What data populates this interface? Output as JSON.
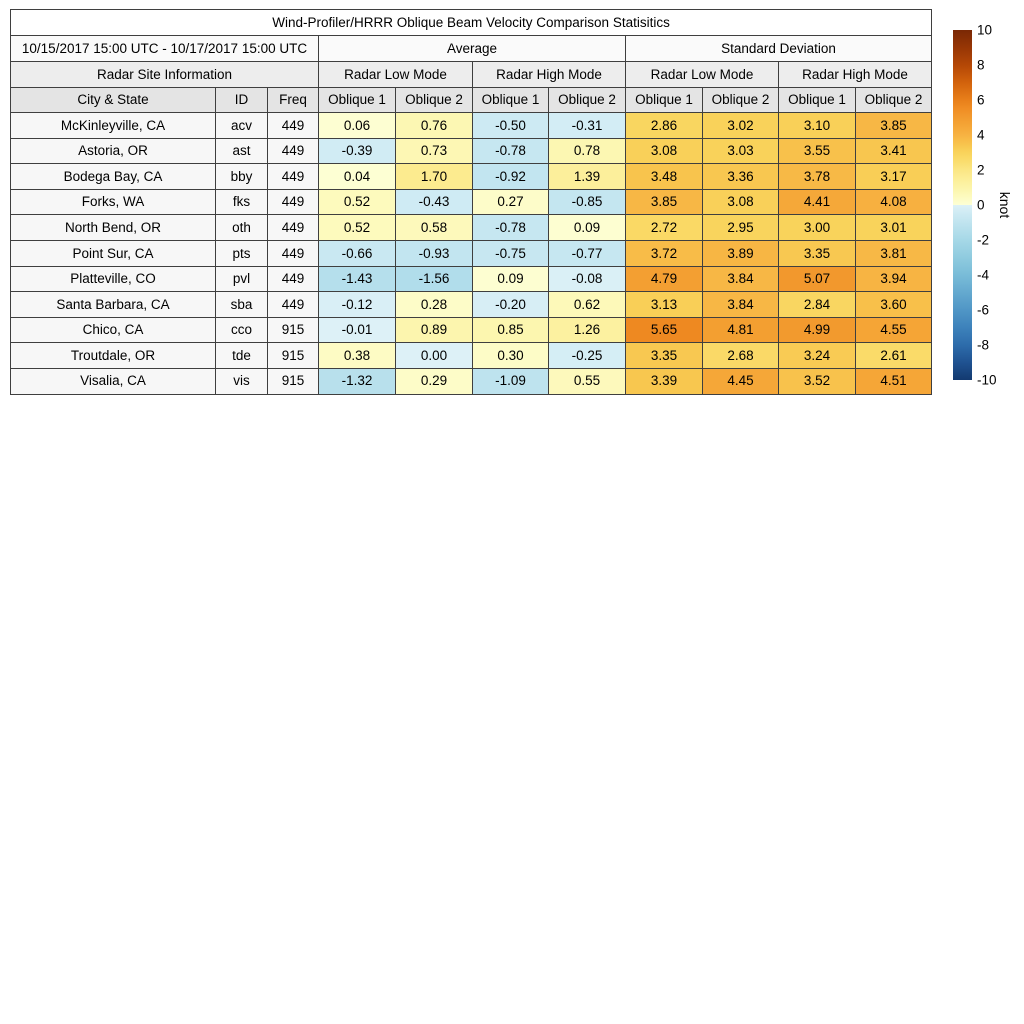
{
  "chart_data": {
    "type": "heatmap-table",
    "title": "Wind-Profiler/HRRR Oblique Beam Velocity Comparison Statisitics",
    "date_range": "10/15/2017 15:00 UTC - 10/17/2017 15:00 UTC",
    "groups": {
      "site_info": "Radar Site Information",
      "average": "Average",
      "std_dev": "Standard Deviation",
      "low_mode": "Radar Low Mode",
      "high_mode": "Radar High Mode"
    },
    "columns": {
      "city": "City & State",
      "id": "ID",
      "freq": "Freq",
      "oblique1": "Oblique 1",
      "oblique2": "Oblique 2"
    },
    "rows": [
      {
        "city": "McKinleyville, CA",
        "id": "acv",
        "freq": "449",
        "values": [
          "0.06",
          "0.76",
          "-0.50",
          "-0.31",
          "2.86",
          "3.02",
          "3.10",
          "3.85"
        ]
      },
      {
        "city": "Astoria, OR",
        "id": "ast",
        "freq": "449",
        "values": [
          "-0.39",
          "0.73",
          "-0.78",
          "0.78",
          "3.08",
          "3.03",
          "3.55",
          "3.41"
        ]
      },
      {
        "city": "Bodega Bay, CA",
        "id": "bby",
        "freq": "449",
        "values": [
          "0.04",
          "1.70",
          "-0.92",
          "1.39",
          "3.48",
          "3.36",
          "3.78",
          "3.17"
        ]
      },
      {
        "city": "Forks, WA",
        "id": "fks",
        "freq": "449",
        "values": [
          "0.52",
          "-0.43",
          "0.27",
          "-0.85",
          "3.85",
          "3.08",
          "4.41",
          "4.08"
        ]
      },
      {
        "city": "North Bend, OR",
        "id": "oth",
        "freq": "449",
        "values": [
          "0.52",
          "0.58",
          "-0.78",
          "0.09",
          "2.72",
          "2.95",
          "3.00",
          "3.01"
        ]
      },
      {
        "city": "Point Sur, CA",
        "id": "pts",
        "freq": "449",
        "values": [
          "-0.66",
          "-0.93",
          "-0.75",
          "-0.77",
          "3.72",
          "3.89",
          "3.35",
          "3.81"
        ]
      },
      {
        "city": "Platteville, CO",
        "id": "pvl",
        "freq": "449",
        "values": [
          "-1.43",
          "-1.56",
          "0.09",
          "-0.08",
          "4.79",
          "3.84",
          "5.07",
          "3.94"
        ]
      },
      {
        "city": "Santa Barbara, CA",
        "id": "sba",
        "freq": "449",
        "values": [
          "-0.12",
          "0.28",
          "-0.20",
          "0.62",
          "3.13",
          "3.84",
          "2.84",
          "3.60"
        ]
      },
      {
        "city": "Chico, CA",
        "id": "cco",
        "freq": "915",
        "values": [
          "-0.01",
          "0.89",
          "0.85",
          "1.26",
          "5.65",
          "4.81",
          "4.99",
          "4.55"
        ]
      },
      {
        "city": "Troutdale, OR",
        "id": "tde",
        "freq": "915",
        "values": [
          "0.38",
          "0.00",
          "0.30",
          "-0.25",
          "3.35",
          "2.68",
          "3.24",
          "2.61"
        ]
      },
      {
        "city": "Visalia, CA",
        "id": "vis",
        "freq": "915",
        "values": [
          "-1.32",
          "0.29",
          "-1.09",
          "0.55",
          "3.39",
          "4.45",
          "3.52",
          "4.51"
        ]
      }
    ],
    "colorbar": {
      "unit": "knot",
      "min": -10,
      "max": 10,
      "ticks": [
        "10",
        "8",
        "6",
        "4",
        "2",
        "0",
        "-2",
        "-4",
        "-6",
        "-8",
        "-10"
      ],
      "positive_anchors": [
        [
          0,
          "#fdffd5"
        ],
        [
          0.5,
          "#fdfabe"
        ],
        [
          1,
          "#fcf4a9"
        ],
        [
          1.5,
          "#fcee97"
        ],
        [
          2,
          "#fbe684"
        ],
        [
          2.5,
          "#fadd6d"
        ],
        [
          3,
          "#f9d35b"
        ],
        [
          3.5,
          "#f8c34c"
        ],
        [
          4,
          "#f7b242"
        ],
        [
          4.5,
          "#f5a637"
        ],
        [
          5,
          "#f29a2e"
        ],
        [
          5.5,
          "#f08d24"
        ],
        [
          6,
          "#e87f1a"
        ],
        [
          7,
          "#d2620c"
        ],
        [
          8,
          "#b44706"
        ],
        [
          9,
          "#973605"
        ],
        [
          10,
          "#7a2805"
        ]
      ],
      "negative_anchors": [
        [
          -10,
          "#133a70"
        ],
        [
          -9,
          "#1f5291"
        ],
        [
          -8,
          "#2d6cab"
        ],
        [
          -7,
          "#3d82bb"
        ],
        [
          -6,
          "#5096c6"
        ],
        [
          -5,
          "#64a9cf"
        ],
        [
          -4,
          "#79bcd8"
        ],
        [
          -3,
          "#8fcbdf"
        ],
        [
          -2,
          "#a6d8e7"
        ],
        [
          -1,
          "#c0e4ef"
        ],
        [
          -0.5,
          "#cdeaf3"
        ],
        [
          0,
          "#ddf1f7"
        ]
      ]
    }
  }
}
